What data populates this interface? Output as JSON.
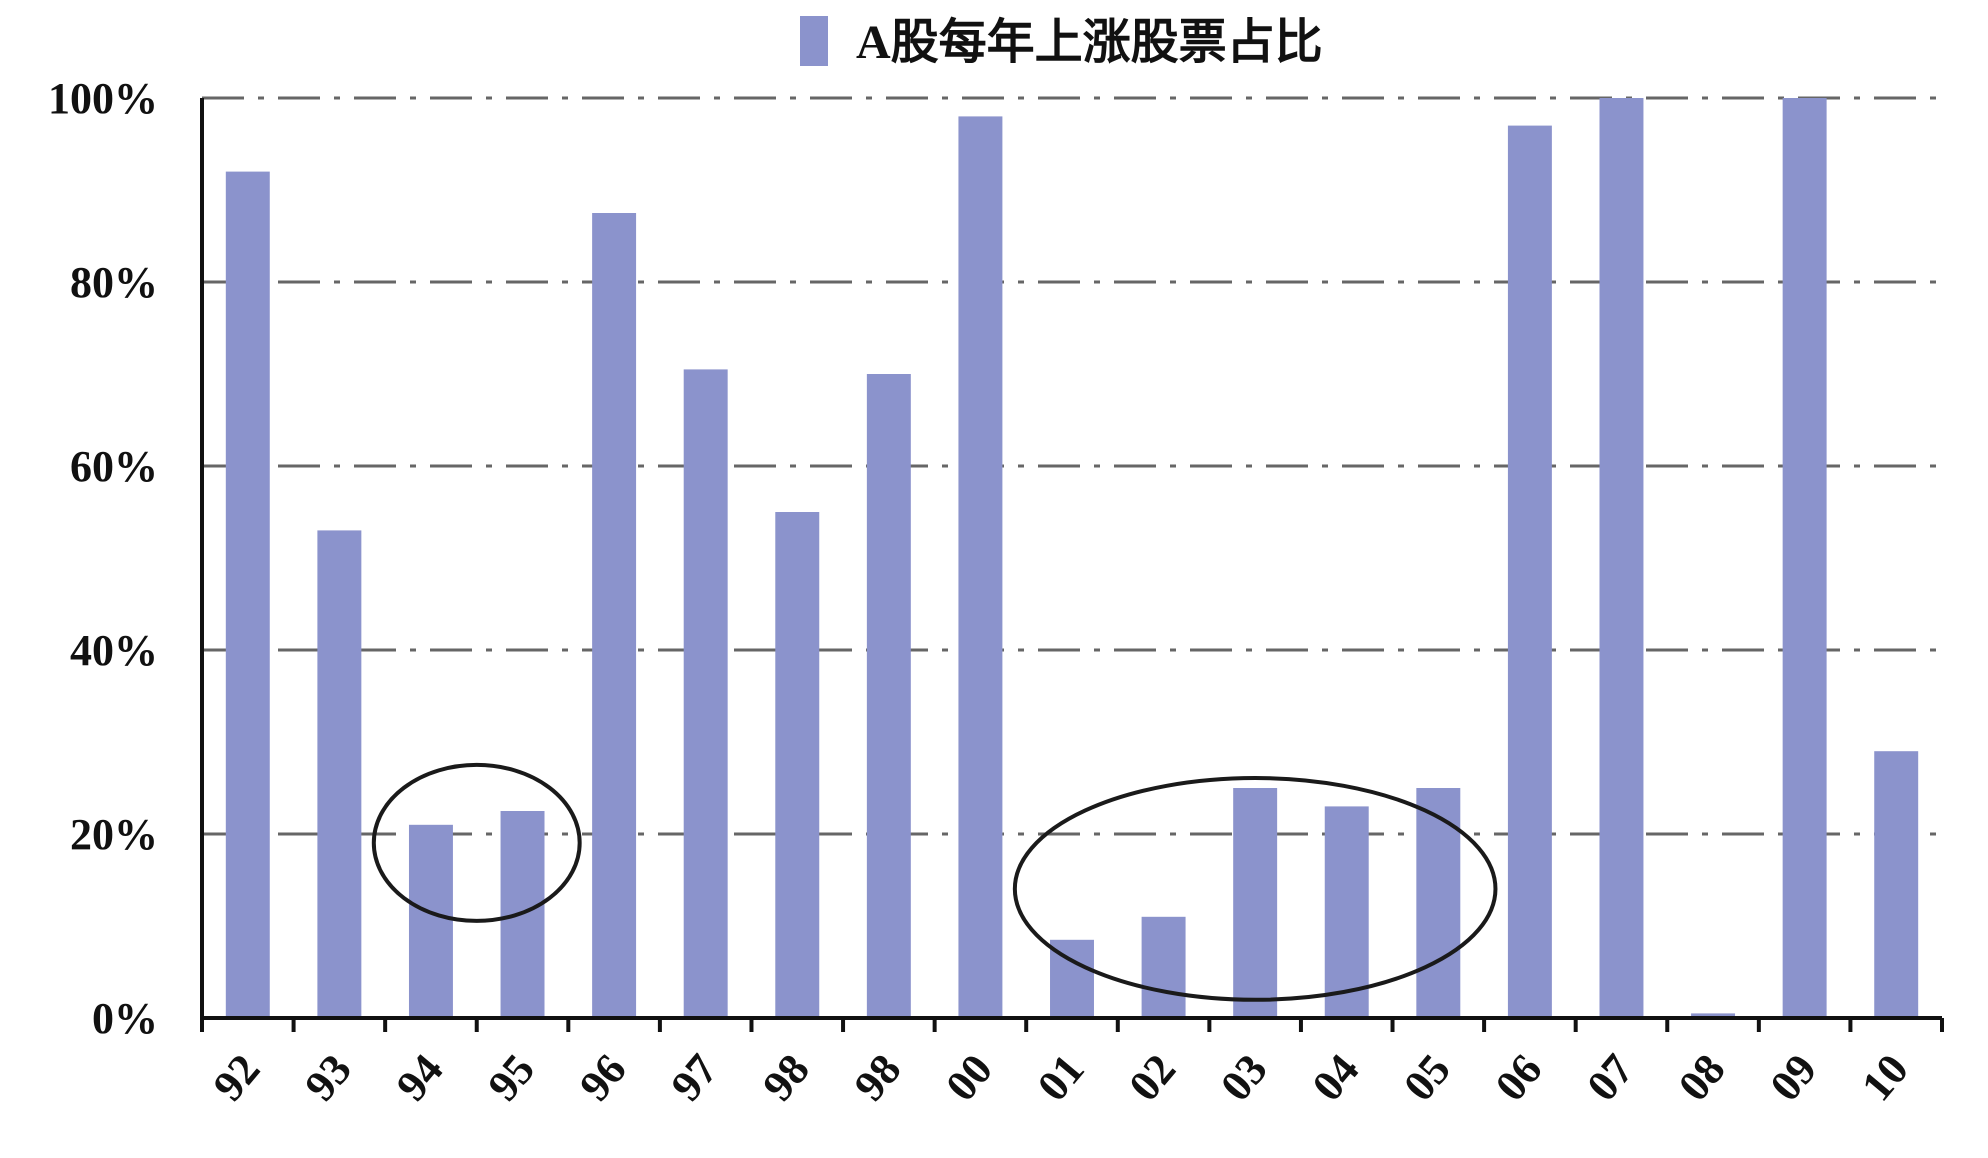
{
  "chart_data": {
    "type": "bar",
    "legend": {
      "label": "A股每年上涨股票占比",
      "placement": "top-center"
    },
    "categories": [
      "92",
      "93",
      "94",
      "95",
      "96",
      "97",
      "98",
      "98",
      "00",
      "01",
      "02",
      "03",
      "04",
      "05",
      "06",
      "07",
      "08",
      "09",
      "10"
    ],
    "series": [
      {
        "name": "A股每年上涨股票占比",
        "color": "#8b93cc",
        "values": [
          92,
          53,
          21,
          22.5,
          87.5,
          70.5,
          55,
          70,
          98,
          8.5,
          11,
          25,
          23,
          25,
          97,
          100,
          0.5,
          100,
          29
        ]
      }
    ],
    "y_ticks": [
      "0%",
      "20%",
      "40%",
      "60%",
      "80%",
      "100%"
    ],
    "ylim": [
      0,
      100
    ],
    "grid": "horizontal dash-dot",
    "annotations": [
      {
        "shape": "ellipse",
        "encircles": [
          "94",
          "95"
        ]
      },
      {
        "shape": "ellipse",
        "encircles": [
          "01",
          "02",
          "03",
          "04",
          "05"
        ]
      }
    ]
  }
}
